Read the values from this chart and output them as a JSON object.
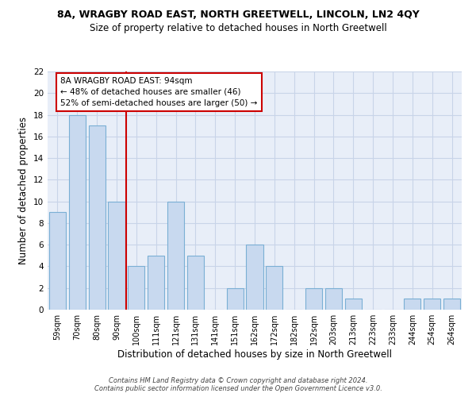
{
  "title": "8A, WRAGBY ROAD EAST, NORTH GREETWELL, LINCOLN, LN2 4QY",
  "subtitle": "Size of property relative to detached houses in North Greetwell",
  "xlabel": "Distribution of detached houses by size in North Greetwell",
  "ylabel": "Number of detached properties",
  "categories": [
    "59sqm",
    "70sqm",
    "80sqm",
    "90sqm",
    "100sqm",
    "111sqm",
    "121sqm",
    "131sqm",
    "141sqm",
    "151sqm",
    "162sqm",
    "172sqm",
    "182sqm",
    "192sqm",
    "203sqm",
    "213sqm",
    "223sqm",
    "233sqm",
    "244sqm",
    "254sqm",
    "264sqm"
  ],
  "values": [
    9,
    18,
    17,
    10,
    4,
    5,
    10,
    5,
    0,
    2,
    6,
    4,
    0,
    2,
    2,
    1,
    0,
    0,
    1,
    1,
    1
  ],
  "bar_color": "#c8d9ef",
  "bar_edge_color": "#7aafd4",
  "grid_color": "#c8d4e8",
  "vline_color": "#cc0000",
  "vline_x": 3.5,
  "annotation_text": "8A WRAGBY ROAD EAST: 94sqm\n← 48% of detached houses are smaller (46)\n52% of semi-detached houses are larger (50) →",
  "annotation_box_color": "#cc0000",
  "ylim": [
    0,
    22
  ],
  "yticks": [
    0,
    2,
    4,
    6,
    8,
    10,
    12,
    14,
    16,
    18,
    20,
    22
  ],
  "footer": "Contains HM Land Registry data © Crown copyright and database right 2024.\nContains public sector information licensed under the Open Government Licence v3.0.",
  "background_color": "#e8eef8",
  "title_fontsize": 9,
  "subtitle_fontsize": 8.5,
  "xlabel_fontsize": 8.5,
  "ylabel_fontsize": 8.5,
  "tick_fontsize": 7,
  "annotation_fontsize": 7.5,
  "footer_fontsize": 6
}
